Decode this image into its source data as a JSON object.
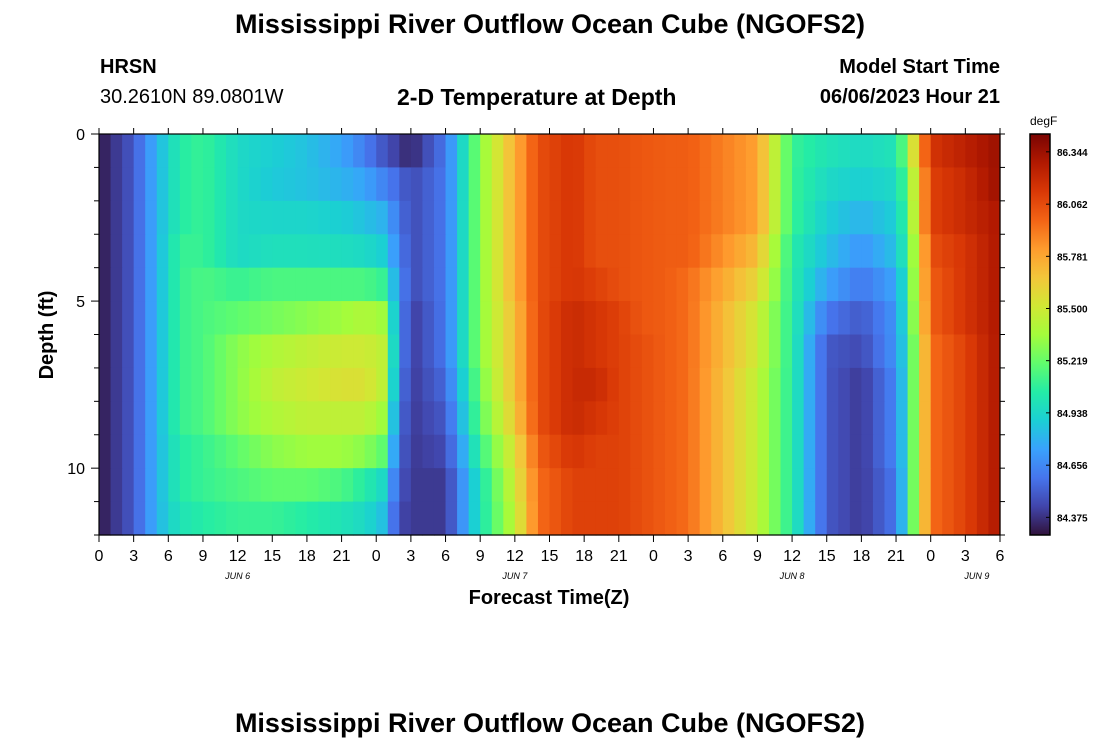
{
  "page": {
    "title": "Mississippi River Outflow Ocean Cube (NGOFS2)",
    "station_name": "HRSN",
    "station_coords": "30.2610N  89.0801W",
    "plot_title": "2-D Temperature at Depth",
    "model_start_label": "Model Start Time",
    "model_start_value": "06/06/2023 Hour 21",
    "bottom_title": "Mississippi River Outflow Ocean Cube (NGOFS2)"
  },
  "chart_data": {
    "type": "heatmap",
    "title": "2-D Temperature at Depth",
    "xlabel": "Forecast Time(Z)",
    "ylabel": "Depth (ft)",
    "xlim_hours": [
      0,
      78
    ],
    "ylim_ft": [
      0,
      12
    ],
    "x_tick_labels": [
      "0",
      "3",
      "6",
      "9",
      "12",
      "15",
      "18",
      "21",
      "0",
      "3",
      "6",
      "9",
      "12",
      "15",
      "18",
      "21",
      "0",
      "3",
      "6",
      "9",
      "12",
      "15",
      "18",
      "21",
      "0",
      "3",
      "6"
    ],
    "y_tick_labels": [
      "0",
      "5",
      "10"
    ],
    "day_labels": [
      "JUN 6",
      "JUN 7",
      "JUN 8",
      "JUN 9"
    ],
    "colorbar": {
      "unit": "degF",
      "range": [
        84.28,
        86.44
      ],
      "tick_labels": [
        "86.344",
        "86.062",
        "85.781",
        "85.500",
        "85.219",
        "84.938",
        "84.656",
        "84.375"
      ],
      "colors": [
        "#30123b",
        "#4145ab",
        "#4675ed",
        "#39a2fc",
        "#1bcfd4",
        "#24eca6",
        "#61fc6c",
        "#a4fc3b",
        "#d1e834",
        "#f3c63a",
        "#fe9b2d",
        "#f36315",
        "#d93806",
        "#b11901",
        "#7a0402"
      ]
    },
    "depth_levels_ft": [
      0.5,
      1.5,
      2.5,
      3.5,
      4.5,
      5.5,
      6.5,
      7.5,
      8.5,
      9.5,
      10.5,
      11.5
    ],
    "time_knots_hours": [
      0,
      3,
      5,
      7,
      9,
      12,
      15,
      18,
      21,
      23,
      24.5,
      26,
      27,
      30,
      33,
      36,
      38,
      41,
      43,
      45,
      47,
      49,
      51,
      57,
      60,
      63,
      66,
      69,
      70,
      71,
      72,
      75,
      78
    ],
    "temperature_degF": [
      [
        84.3,
        84.5,
        84.8,
        85.05,
        85.1,
        84.95,
        84.9,
        84.85,
        84.75,
        84.62,
        84.5,
        84.4,
        84.34,
        84.6,
        85.3,
        85.75,
        86.05,
        86.15,
        86.05,
        86.05,
        86.02,
        86.0,
        86.0,
        85.8,
        85.1,
        85.0,
        84.95,
        85.0,
        85.3,
        85.8,
        86.15,
        86.25,
        86.35
      ],
      [
        84.3,
        84.5,
        84.8,
        85.05,
        85.1,
        84.95,
        84.88,
        84.85,
        84.8,
        84.75,
        84.65,
        84.55,
        84.45,
        84.6,
        85.3,
        85.75,
        86.05,
        86.15,
        86.05,
        86.05,
        86.02,
        86.0,
        86.0,
        85.8,
        85.1,
        84.95,
        84.9,
        84.95,
        85.2,
        85.7,
        86.1,
        86.2,
        86.35
      ],
      [
        84.3,
        84.5,
        84.8,
        85.05,
        85.1,
        84.95,
        84.93,
        84.93,
        84.9,
        84.85,
        84.8,
        84.6,
        84.45,
        84.6,
        85.3,
        85.75,
        86.05,
        86.15,
        86.05,
        86.05,
        86.02,
        86.0,
        86.0,
        85.8,
        85.1,
        84.9,
        84.8,
        84.9,
        85.15,
        85.7,
        86.1,
        86.2,
        86.3
      ],
      [
        84.3,
        84.5,
        84.8,
        85.1,
        85.1,
        84.95,
        84.98,
        84.98,
        84.97,
        84.95,
        84.9,
        84.65,
        84.45,
        84.6,
        85.3,
        85.75,
        86.05,
        86.15,
        86.05,
        86.05,
        86.02,
        86.0,
        86.0,
        85.7,
        85.05,
        84.85,
        84.7,
        84.85,
        85.1,
        85.6,
        86.05,
        86.15,
        86.3
      ],
      [
        84.3,
        84.5,
        84.8,
        85.1,
        85.15,
        85.1,
        85.15,
        85.15,
        85.15,
        85.15,
        85.1,
        84.7,
        84.45,
        84.6,
        85.3,
        85.75,
        86.05,
        86.15,
        86.1,
        86.05,
        86.02,
        86.0,
        85.95,
        85.6,
        85.05,
        84.75,
        84.6,
        84.75,
        85.05,
        85.6,
        86.0,
        86.15,
        86.3
      ],
      [
        84.3,
        84.5,
        84.8,
        85.1,
        85.15,
        85.2,
        85.25,
        85.3,
        85.35,
        85.4,
        85.35,
        84.7,
        84.4,
        84.6,
        85.3,
        85.7,
        86.05,
        86.2,
        86.15,
        86.1,
        86.02,
        86.0,
        85.95,
        85.5,
        85.05,
        84.6,
        84.5,
        84.7,
        85.05,
        85.55,
        86.0,
        86.15,
        86.3
      ],
      [
        84.3,
        84.5,
        84.8,
        85.1,
        85.15,
        85.3,
        85.4,
        85.45,
        85.5,
        85.5,
        85.45,
        84.7,
        84.4,
        84.6,
        85.3,
        85.7,
        86.05,
        86.2,
        86.15,
        86.1,
        86.05,
        86.0,
        85.95,
        85.5,
        85.05,
        84.5,
        84.45,
        84.7,
        85.0,
        85.5,
        85.95,
        86.1,
        86.3
      ],
      [
        84.3,
        84.5,
        84.8,
        85.1,
        85.15,
        85.3,
        85.45,
        85.5,
        85.55,
        85.55,
        85.45,
        84.65,
        84.4,
        84.55,
        85.25,
        85.7,
        86.05,
        86.2,
        86.2,
        86.1,
        86.05,
        86.0,
        85.95,
        85.45,
        85.05,
        84.5,
        84.4,
        84.65,
        85.0,
        85.5,
        85.95,
        86.1,
        86.3
      ],
      [
        84.3,
        84.5,
        84.8,
        85.1,
        85.15,
        85.3,
        85.4,
        85.45,
        85.45,
        85.45,
        85.35,
        84.6,
        84.4,
        84.5,
        85.2,
        85.65,
        86.05,
        86.2,
        86.15,
        86.1,
        86.05,
        86.0,
        85.95,
        85.45,
        85.05,
        84.5,
        84.4,
        84.65,
        85.0,
        85.5,
        85.95,
        86.1,
        86.3
      ],
      [
        84.3,
        84.5,
        84.8,
        85.05,
        85.1,
        85.2,
        85.3,
        85.35,
        85.35,
        85.3,
        85.2,
        84.55,
        84.4,
        84.45,
        85.1,
        85.55,
        86.0,
        86.15,
        86.1,
        86.1,
        86.05,
        86.0,
        85.95,
        85.45,
        85.05,
        84.5,
        84.4,
        84.65,
        85.0,
        85.5,
        85.95,
        86.1,
        86.3
      ],
      [
        84.3,
        84.5,
        84.8,
        85.05,
        85.1,
        85.15,
        85.2,
        85.2,
        85.15,
        85.05,
        84.95,
        84.5,
        84.4,
        84.4,
        85.0,
        85.5,
        85.95,
        86.1,
        86.1,
        86.1,
        86.05,
        86.0,
        85.95,
        85.45,
        85.05,
        84.5,
        84.4,
        84.6,
        85.0,
        85.5,
        85.95,
        86.1,
        86.3
      ],
      [
        84.3,
        84.5,
        84.8,
        85.0,
        85.05,
        85.1,
        85.1,
        85.05,
        85.0,
        84.95,
        84.85,
        84.45,
        84.4,
        84.4,
        85.0,
        85.45,
        85.95,
        86.1,
        86.1,
        86.1,
        86.05,
        86.0,
        85.95,
        85.45,
        85.05,
        84.5,
        84.4,
        84.6,
        85.0,
        85.5,
        85.95,
        86.1,
        86.3
      ]
    ]
  }
}
